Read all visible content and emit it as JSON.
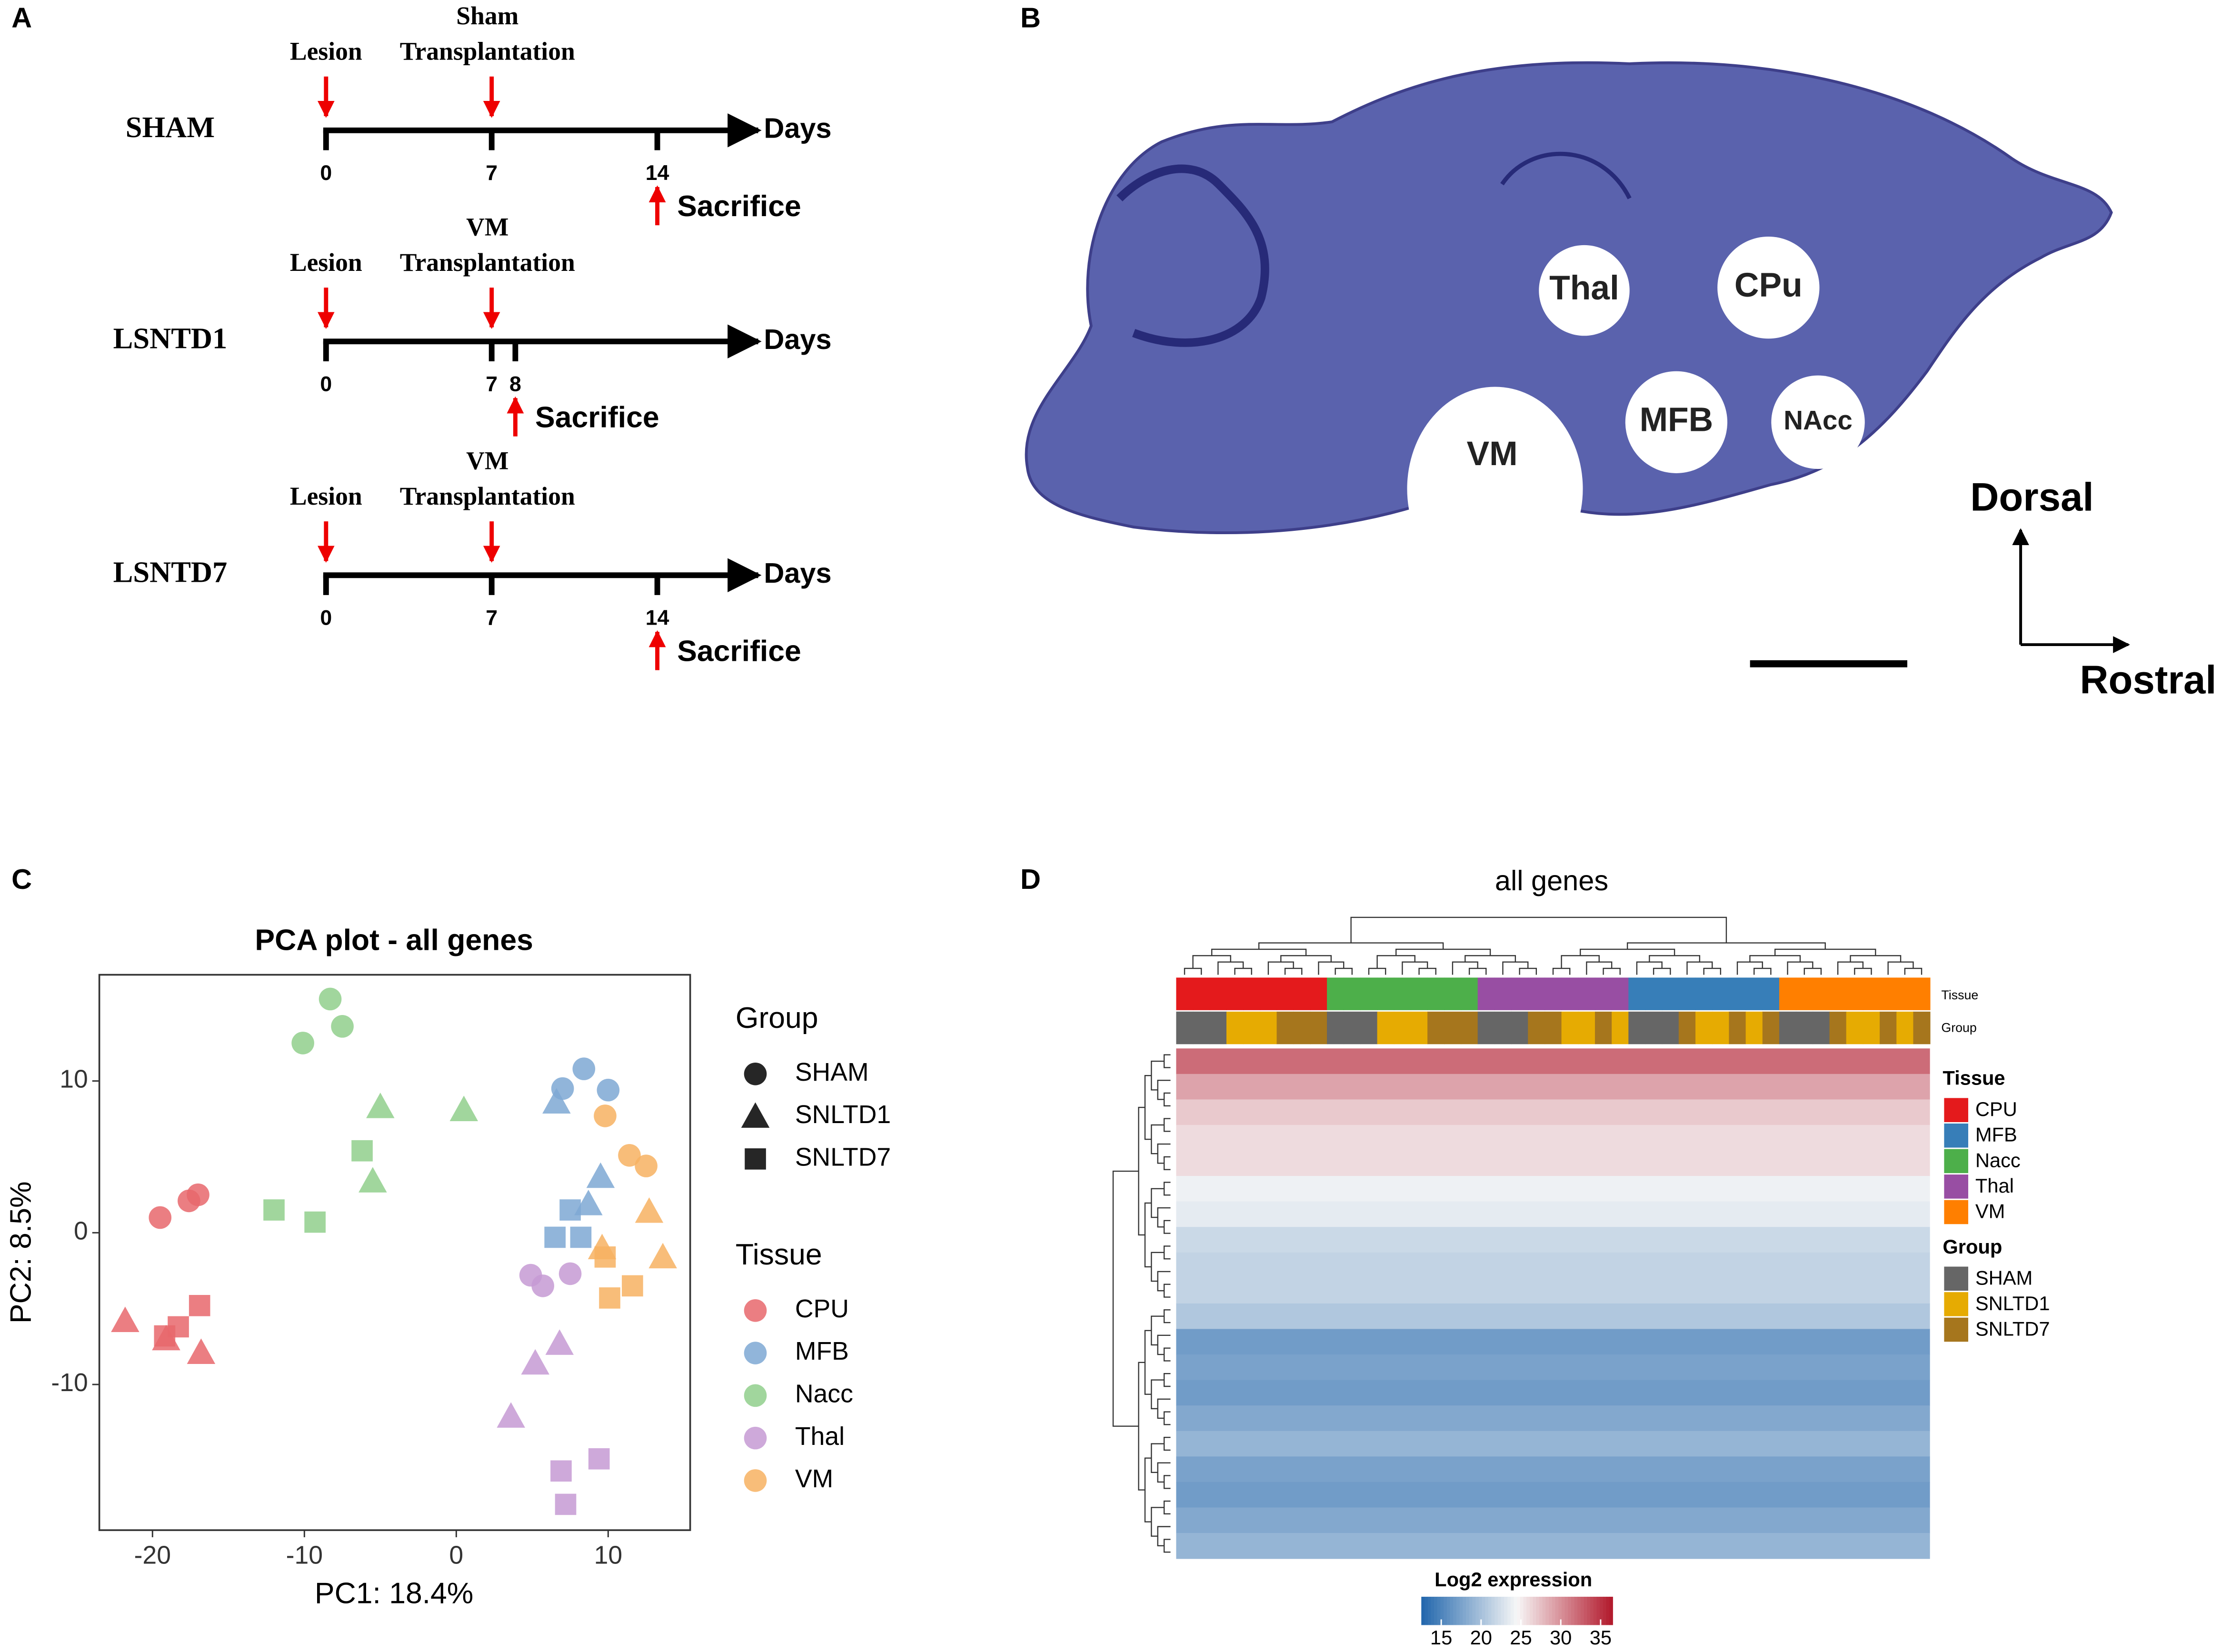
{
  "panel_labels": [
    "A",
    "B",
    "C",
    "D"
  ],
  "timeline": {
    "axis_label": "Days",
    "rows": [
      {
        "label": "SHAM",
        "events": [
          {
            "day": 0,
            "text": [
              "Lesion"
            ]
          },
          {
            "day": 7,
            "text": [
              "Sham",
              "Transplantation"
            ]
          }
        ],
        "ticks": [
          0,
          7,
          14
        ],
        "sacrifice": {
          "day": 14,
          "text": "Sacrifice"
        }
      },
      {
        "label": "LSNTD1",
        "events": [
          {
            "day": 0,
            "text": [
              "Lesion"
            ]
          },
          {
            "day": 7,
            "text": [
              "VM",
              "Transplantation"
            ]
          }
        ],
        "ticks": [
          0,
          7,
          8
        ],
        "sacrifice": {
          "day": 8,
          "text": "Sacrifice"
        }
      },
      {
        "label": "LSNTD7",
        "events": [
          {
            "day": 0,
            "text": [
              "Lesion"
            ]
          },
          {
            "day": 7,
            "text": [
              "VM",
              "Transplantation"
            ]
          }
        ],
        "ticks": [
          0,
          7,
          14
        ],
        "sacrifice": {
          "day": 14,
          "text": "Sacrifice"
        }
      }
    ]
  },
  "brain": {
    "regions": [
      "Thal",
      "CPu",
      "MFB",
      "NAcc",
      "VM"
    ],
    "orientation": [
      "Dorsal",
      "Rostral"
    ]
  },
  "chart_data": [
    {
      "type": "scatter",
      "title": "PCA plot - all genes",
      "x_label": "PC1: 18.4%",
      "y_label": "PC2: 8.5%",
      "xlim": [
        -23.5,
        15.4
      ],
      "ylim": [
        -19.6,
        17.0
      ],
      "xticks": [
        -20,
        -10,
        0,
        10
      ],
      "yticks": [
        -10,
        0,
        10
      ],
      "shape_legend": {
        "title": "Group",
        "items": [
          "SHAM",
          "SNLTD1",
          "SNLTD7"
        ]
      },
      "color_legend_title": "Tissue",
      "series": [
        {
          "name": "CPU",
          "color": "#e8676c",
          "x": [
            -19.5,
            -17.6,
            -17.0,
            -21.8,
            -19.1,
            -16.8,
            -16.9,
            -18.3,
            -19.2
          ],
          "y": [
            1.0,
            2.1,
            2.5,
            -5.8,
            -7.0,
            -7.9,
            -4.8,
            -6.2,
            -6.8
          ],
          "groups": [
            "SHAM",
            "SHAM",
            "SHAM",
            "SNLTD1",
            "SNLTD1",
            "SNLTD1",
            "SNLTD7",
            "SNLTD7",
            "SNLTD7"
          ]
        },
        {
          "name": "MFB",
          "color": "#7ea8d4",
          "x": [
            7.0,
            8.4,
            10.0,
            6.6,
            9.5,
            8.7,
            6.5,
            7.5,
            8.2
          ],
          "y": [
            9.5,
            10.8,
            9.4,
            8.6,
            3.7,
            1.9,
            -0.3,
            1.5,
            -0.3
          ],
          "groups": [
            "SHAM",
            "SHAM",
            "SHAM",
            "SNLTD1",
            "SNLTD1",
            "SNLTD1",
            "SNLTD7",
            "SNLTD7",
            "SNLTD7"
          ]
        },
        {
          "name": "Nacc",
          "color": "#91cf8c",
          "x": [
            -10.1,
            -8.3,
            -7.5,
            -5.0,
            0.5,
            -5.5,
            -12.0,
            -9.3,
            -6.2
          ],
          "y": [
            12.5,
            15.4,
            13.6,
            8.3,
            8.1,
            3.4,
            1.5,
            0.7,
            5.4
          ],
          "groups": [
            "SHAM",
            "SHAM",
            "SHAM",
            "SNLTD1",
            "SNLTD1",
            "SNLTD1",
            "SNLTD7",
            "SNLTD7",
            "SNLTD7"
          ]
        },
        {
          "name": "Thal",
          "color": "#c59ad3",
          "x": [
            4.9,
            5.7,
            7.5,
            5.2,
            6.8,
            3.6,
            6.9,
            9.4,
            7.2
          ],
          "y": [
            -2.8,
            -3.5,
            -2.7,
            -8.6,
            -7.3,
            -12.1,
            -15.7,
            -14.9,
            -17.9
          ],
          "groups": [
            "SHAM",
            "SHAM",
            "SHAM",
            "SNLTD1",
            "SNLTD1",
            "SNLTD1",
            "SNLTD7",
            "SNLTD7",
            "SNLTD7"
          ]
        },
        {
          "name": "VM",
          "color": "#f7b162",
          "x": [
            9.8,
            11.4,
            12.5,
            12.7,
            13.6,
            9.6,
            9.8,
            11.6,
            10.1
          ],
          "y": [
            7.7,
            5.1,
            4.4,
            1.4,
            -1.6,
            -1.0,
            -1.6,
            -3.5,
            -4.3
          ],
          "groups": [
            "SHAM",
            "SHAM",
            "SHAM",
            "SNLTD1",
            "SNLTD1",
            "SNLTD1",
            "SNLTD7",
            "SNLTD7",
            "SNLTD7"
          ]
        }
      ]
    },
    {
      "type": "heatmap",
      "title": "all genes",
      "annotation_labels": [
        "Tissue",
        "Group"
      ],
      "tissue_legend": {
        "title": "Tissue",
        "items": [
          {
            "name": "CPU",
            "color": "#e41a1c"
          },
          {
            "name": "MFB",
            "color": "#377eb8"
          },
          {
            "name": "Nacc",
            "color": "#4daf4a"
          },
          {
            "name": "Thal",
            "color": "#984ea3"
          },
          {
            "name": "VM",
            "color": "#ff7f00"
          }
        ]
      },
      "group_legend": {
        "title": "Group",
        "items": [
          {
            "name": "SHAM",
            "color": "#666666"
          },
          {
            "name": "SNLTD1",
            "color": "#e6ab02"
          },
          {
            "name": "SNLTD7",
            "color": "#a6761d"
          }
        ]
      },
      "columns": [
        {
          "tissue": "CPU",
          "groups": [
            "SHAM",
            "SHAM",
            "SHAM",
            "SNLTD1",
            "SNLTD1",
            "SNLTD1",
            "SNLTD7",
            "SNLTD7",
            "SNLTD7"
          ]
        },
        {
          "tissue": "Nacc",
          "groups": [
            "SHAM",
            "SHAM",
            "SHAM",
            "SNLTD1",
            "SNLTD1",
            "SNLTD1",
            "SNLTD7",
            "SNLTD7",
            "SNLTD7"
          ]
        },
        {
          "tissue": "Thal",
          "groups": [
            "SHAM",
            "SHAM",
            "SHAM",
            "SNLTD7",
            "SNLTD7",
            "SNLTD1",
            "SNLTD1",
            "SNLTD7",
            "SNLTD1"
          ]
        },
        {
          "tissue": "MFB",
          "groups": [
            "SHAM",
            "SHAM",
            "SHAM",
            "SNLTD7",
            "SNLTD1",
            "SNLTD1",
            "SNLTD7",
            "SNLTD1",
            "SNLTD7"
          ]
        },
        {
          "tissue": "VM",
          "groups": [
            "SHAM",
            "SHAM",
            "SHAM",
            "SNLTD7",
            "SNLTD1",
            "SNLTD1",
            "SNLTD7",
            "SNLTD1",
            "SNLTD7"
          ]
        }
      ],
      "values": [
        32,
        29,
        27,
        26,
        26,
        24,
        23.5,
        22,
        21.5,
        21.5,
        20.5,
        17,
        17.5,
        17,
        18,
        19,
        17.5,
        17,
        18,
        19
      ],
      "colorbar": {
        "title": "Log2 expression",
        "lim": [
          12.5,
          36.5
        ],
        "ticks": [
          15,
          20,
          25,
          30,
          35
        ],
        "colors": [
          "#2166ac",
          "#f7f7f7",
          "#b2182b"
        ]
      }
    }
  ]
}
